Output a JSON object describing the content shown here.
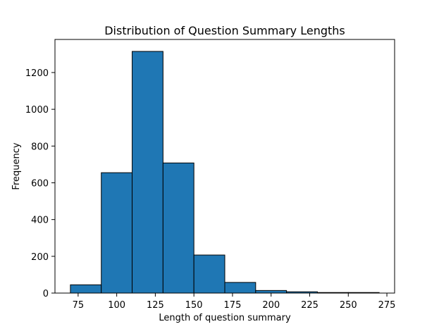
{
  "chart_data": {
    "type": "bar",
    "title": "Distribution of Question Summary Lengths",
    "xlabel": "Length of question summary",
    "ylabel": "Frequency",
    "bins": [
      {
        "start": 70,
        "end": 90,
        "count": 45
      },
      {
        "start": 90,
        "end": 110,
        "count": 655
      },
      {
        "start": 110,
        "end": 130,
        "count": 1315
      },
      {
        "start": 130,
        "end": 150,
        "count": 708
      },
      {
        "start": 150,
        "end": 170,
        "count": 207
      },
      {
        "start": 170,
        "end": 190,
        "count": 58
      },
      {
        "start": 190,
        "end": 210,
        "count": 14
      },
      {
        "start": 210,
        "end": 230,
        "count": 7
      },
      {
        "start": 230,
        "end": 250,
        "count": 3
      },
      {
        "start": 250,
        "end": 270,
        "count": 3
      }
    ],
    "xlim": [
      60,
      280
    ],
    "ylim": [
      0,
      1380
    ],
    "xticks": [
      75,
      100,
      125,
      150,
      175,
      200,
      225,
      250,
      275
    ],
    "yticks": [
      0,
      200,
      400,
      600,
      800,
      1000,
      1200
    ],
    "bar_color": "#1f77b4",
    "edge_color": "#000000",
    "grid": false,
    "legend": "none"
  }
}
